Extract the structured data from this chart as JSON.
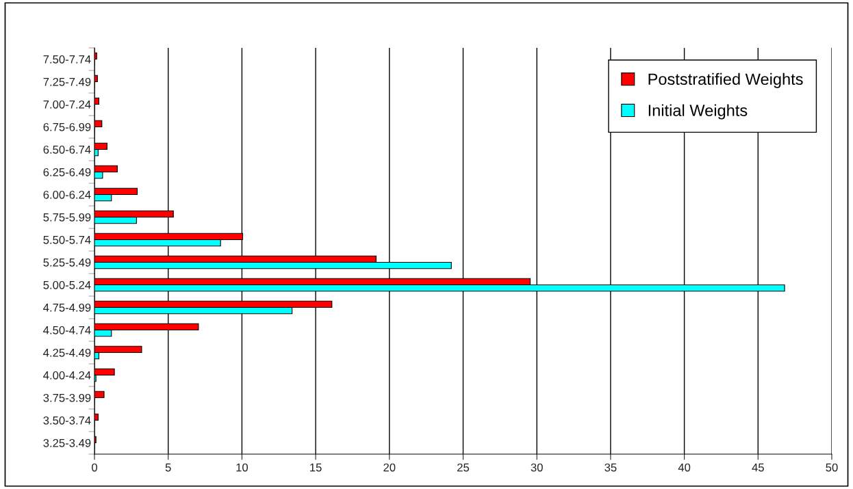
{
  "chart_data": {
    "type": "bar",
    "orientation": "horizontal",
    "categories": [
      "7.50-7.74",
      "7.25-7.49",
      "7.00-7.24",
      "6.75-6.99",
      "6.50-6.74",
      "6.25-6.49",
      "6.00-6.24",
      "5.75-5.99",
      "5.50-5.74",
      "5.25-5.49",
      "5.00-5.24",
      "4.75-4.99",
      "4.50-4.74",
      "4.25-4.49",
      "4.00-4.24",
      "3.75-3.99",
      "3.50-3.74",
      "3.25-3.49"
    ],
    "series": [
      {
        "name": "Poststratified Weights",
        "color": "#ff0000",
        "values": [
          0.15,
          0.2,
          0.3,
          0.5,
          0.85,
          1.55,
          2.9,
          5.35,
          10.05,
          19.1,
          29.55,
          16.1,
          7.05,
          3.2,
          1.35,
          0.65,
          0.25,
          0.1
        ]
      },
      {
        "name": "Initial Weights",
        "color": "#00ffff",
        "values": [
          0,
          0,
          0,
          0,
          0.25,
          0.55,
          1.15,
          2.85,
          8.55,
          24.2,
          46.8,
          13.4,
          1.15,
          0.3,
          0.1,
          0,
          0,
          0
        ]
      }
    ],
    "xlim": [
      0,
      50
    ],
    "xticks": [
      0,
      5,
      10,
      15,
      20,
      25,
      30,
      35,
      40,
      45,
      50
    ],
    "grid": "x",
    "legend": "top right"
  }
}
